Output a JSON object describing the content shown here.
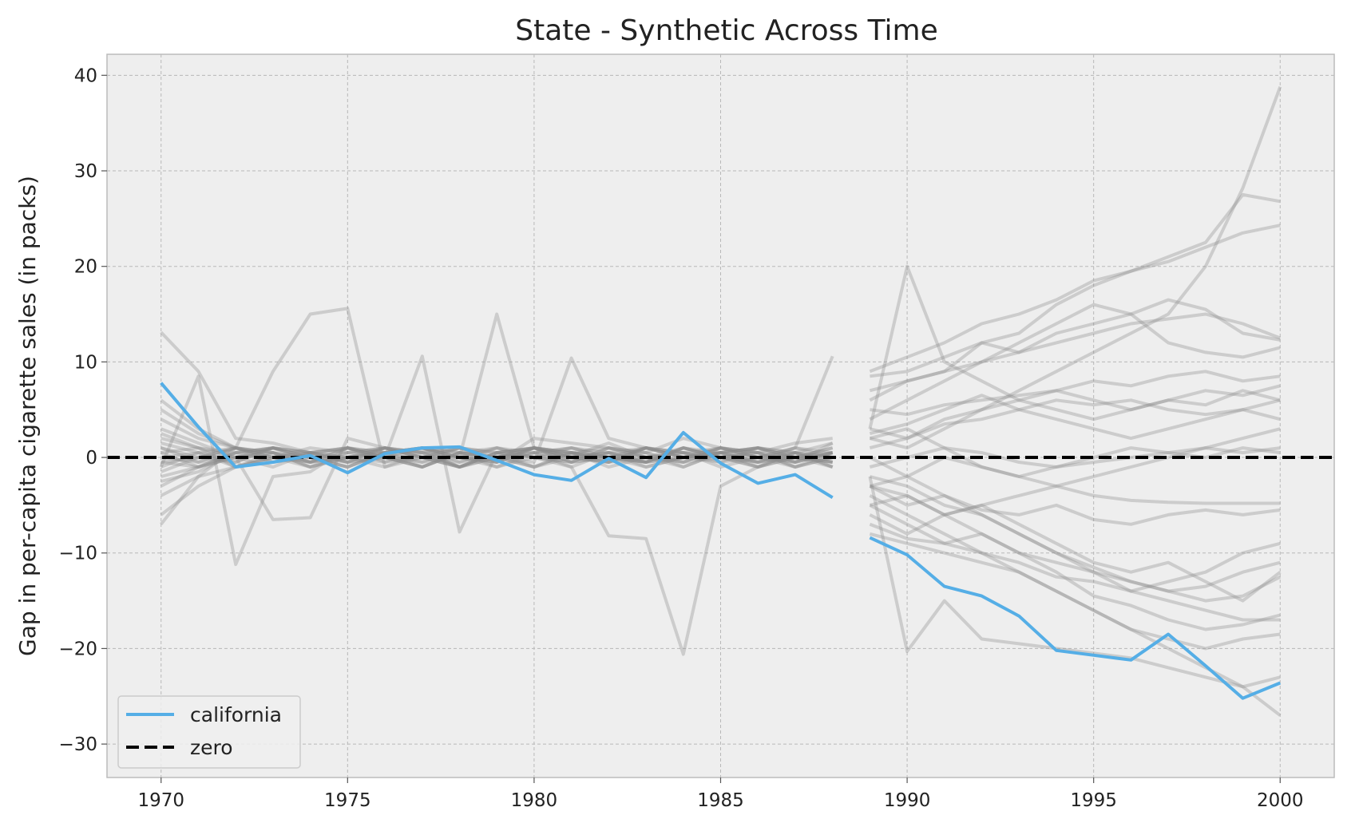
{
  "chart_data": {
    "type": "line",
    "title": "State - Synthetic Across Time",
    "xlabel": "",
    "ylabel": "Gap in per-capita cigarette sales (in packs)",
    "xlim": [
      1968.55,
      2001.45
    ],
    "ylim": [
      -33.5,
      42.2
    ],
    "x_ticks": [
      "1970",
      "1975",
      "1980",
      "1985",
      "1990",
      "1995",
      "2000"
    ],
    "y_ticks": [
      "40",
      "30",
      "20",
      "10",
      "0",
      "−10",
      "−20",
      "−30"
    ],
    "grid": true,
    "legend_position": "lower-left",
    "colors": {
      "california": "#55aee6",
      "placebo": "#8c8c8c",
      "zero": "#000000",
      "plot_bg": "#eeeeee",
      "grid": "#b8b8b8"
    },
    "legend": [
      {
        "label": "california",
        "style": "solid"
      },
      {
        "label": "zero",
        "style": "dashed"
      }
    ],
    "series": [
      {
        "name": "california",
        "pre_x": [
          1970,
          1971,
          1972,
          1973,
          1974,
          1975,
          1976,
          1977,
          1978,
          1979,
          1980,
          1981,
          1982,
          1983,
          1984,
          1985,
          1986,
          1987,
          1988
        ],
        "pre_y": [
          7.8,
          3.2,
          -1.0,
          -0.5,
          0.2,
          -1.6,
          0.4,
          1.0,
          1.1,
          -0.3,
          -1.8,
          -2.4,
          -0.1,
          -2.1,
          2.6,
          -0.6,
          -2.7,
          -1.8,
          -4.2
        ],
        "post_x": [
          1989,
          1990,
          1991,
          1992,
          1993,
          1994,
          1995,
          1996,
          1997,
          1998,
          1999,
          2000
        ],
        "post_y": [
          -8.4,
          -10.2,
          -13.5,
          -14.5,
          -16.6,
          -20.2,
          -20.7,
          -21.2,
          -18.5,
          -21.8,
          -25.2,
          -23.6
        ]
      },
      {
        "name": "zero",
        "x": [
          1968.55,
          2001.45
        ],
        "y": [
          0,
          0
        ]
      }
    ],
    "placebo_series": [
      {
        "pre": [
          13.1,
          9.0,
          2.0,
          1.5,
          0.5,
          0.0,
          -0.5,
          0.8,
          -1.0,
          0.5,
          1.0,
          0.2,
          1.5,
          0.0,
          -1.0,
          0.5,
          1.0,
          -0.5,
          1.5
        ],
        "post": [
          5.0,
          4.5,
          5.5,
          6.0,
          6.5,
          7.0,
          8.0,
          7.5,
          8.5,
          9.0,
          8.0,
          8.5
        ]
      },
      {
        "pre": [
          -7.0,
          -2.0,
          1.0,
          9.0,
          15.0,
          15.6,
          -1.0,
          0.5,
          1.0,
          -0.5,
          2.0,
          1.5,
          1.0,
          0.5,
          2.0,
          1.0,
          0.5,
          1.5,
          2.0
        ],
        "post": [
          9.0,
          10.5,
          12.0,
          14.0,
          15.0,
          16.5,
          18.5,
          19.5,
          20.5,
          22.0,
          23.5,
          24.3
        ]
      },
      {
        "pre": [
          -1.0,
          8.5,
          -11.2,
          -2.0,
          -1.5,
          1.0,
          0.5,
          -1.0,
          0.5,
          1.0,
          0.0,
          -0.5,
          1.0,
          0.5,
          -0.5,
          1.0,
          0.0,
          -1.0,
          0.5
        ],
        "post": [
          -5.0,
          -4.0,
          -6.0,
          -8.0,
          -10.0,
          -12.0,
          -14.5,
          -15.5,
          -17.0,
          -18.0,
          -17.5,
          -16.5
        ]
      },
      {
        "pre": [
          1.0,
          -0.5,
          0.0,
          -6.5,
          -6.3,
          2.0,
          1.0,
          0.0,
          -1.0,
          0.5,
          1.0,
          0.0,
          -0.5,
          1.0,
          0.5,
          0.0,
          -1.0,
          0.5,
          1.5
        ],
        "post": [
          -2.0,
          -3.0,
          -5.0,
          -6.0,
          -8.0,
          -10.0,
          -11.5,
          -13.0,
          -14.0,
          -15.0,
          -14.5,
          -12.5
        ]
      },
      {
        "pre": [
          0.5,
          1.0,
          -1.0,
          0.5,
          -0.5,
          1.0,
          0.0,
          10.6,
          -7.8,
          0.5,
          1.0,
          0.5,
          0.0,
          -0.5,
          1.0,
          0.0,
          0.5,
          -0.5,
          0.5
        ],
        "post": [
          3.0,
          2.0,
          4.0,
          5.0,
          6.0,
          5.0,
          4.0,
          5.0,
          6.0,
          7.0,
          6.5,
          7.5
        ]
      },
      {
        "pre": [
          -2.0,
          -1.0,
          0.5,
          1.0,
          0.0,
          -1.0,
          0.5,
          1.0,
          0.0,
          15.0,
          1.0,
          0.5,
          -1.0,
          0.0,
          0.5,
          1.0,
          0.0,
          -0.5,
          0.5
        ],
        "post": [
          2.0,
          3.0,
          1.0,
          0.5,
          -0.5,
          -1.0,
          -0.5,
          0.0,
          0.5,
          1.0,
          0.5,
          1.0
        ]
      },
      {
        "pre": [
          0.0,
          0.5,
          -1.0,
          0.0,
          1.0,
          0.5,
          0.0,
          -1.0,
          0.5,
          0.0,
          -0.5,
          10.4,
          2.0,
          1.0,
          0.0,
          0.5,
          -1.0,
          0.0,
          0.5
        ],
        "post": [
          -3.0,
          -5.0,
          -4.0,
          -5.5,
          -6.0,
          -5.0,
          -6.5,
          -7.0,
          -6.0,
          -5.5,
          -6.0,
          -5.5
        ]
      },
      {
        "pre": [
          -0.5,
          -1.0,
          0.5,
          1.0,
          -0.5,
          0.0,
          1.0,
          0.5,
          -1.0,
          0.0,
          0.5,
          -1.0,
          -8.2,
          -8.5,
          -20.6,
          -3.0,
          -1.0,
          0.0,
          0.5
        ],
        "post": [
          -2.0,
          -20.3,
          -15.0,
          -19.0,
          -19.5,
          -20.0,
          -20.5,
          -21.0,
          -22.0,
          -23.0,
          -24.0,
          -27.0
        ]
      },
      {
        "pre": [
          1.5,
          0.5,
          -0.5,
          1.0,
          0.0,
          -1.0,
          0.5,
          1.0,
          0.0,
          -0.5,
          1.0,
          0.5,
          0.0,
          1.0,
          0.5,
          -0.5,
          0.0,
          1.0,
          10.6
        ],
        "post": [
          8.5,
          9.0,
          10.5,
          12.0,
          11.0,
          12.0,
          13.0,
          14.0,
          14.5,
          15.0,
          14.0,
          12.5
        ]
      },
      {
        "pre": [
          -1.5,
          0.0,
          1.0,
          -0.5,
          0.5,
          1.0,
          -0.5,
          0.0,
          1.0,
          0.5,
          -1.0,
          0.0,
          0.5,
          -0.5,
          1.0,
          0.0,
          -0.5,
          0.5,
          -1.0
        ],
        "post": [
          3.0,
          20.0,
          10.0,
          8.0,
          6.0,
          7.0,
          6.0,
          5.0,
          6.0,
          5.5,
          7.0,
          6.0
        ]
      },
      {
        "pre": [
          0.0,
          -0.5,
          1.0,
          0.5,
          -1.0,
          0.0,
          0.5,
          1.0,
          -0.5,
          0.0,
          1.0,
          -0.5,
          0.0,
          0.5,
          -1.0,
          0.5,
          1.0,
          0.0,
          -0.5
        ],
        "post": [
          -5.0,
          -7.0,
          -9.0,
          -8.0,
          -10.0,
          -11.0,
          -12.0,
          -13.0,
          -14.0,
          -13.5,
          -12.0,
          -11.0
        ]
      },
      {
        "pre": [
          2.0,
          1.0,
          0.5,
          -0.5,
          0.0,
          1.0,
          0.5,
          -0.5,
          0.0,
          1.0,
          0.5,
          0.0,
          -0.5,
          1.0,
          0.0,
          0.5,
          -0.5,
          0.0,
          1.0
        ],
        "post": [
          1.0,
          2.0,
          3.5,
          4.0,
          5.0,
          6.0,
          5.5,
          6.0,
          5.0,
          4.5,
          5.0,
          4.0
        ]
      },
      {
        "pre": [
          -3.0,
          -1.0,
          0.0,
          1.0,
          0.5,
          -0.5,
          1.0,
          0.0,
          -1.0,
          0.5,
          1.0,
          0.0,
          0.5,
          -0.5,
          0.0,
          1.0,
          0.5,
          -1.0,
          0.0
        ],
        "post": [
          -6.0,
          -8.0,
          -6.0,
          -5.0,
          -4.0,
          -3.0,
          -2.0,
          -1.0,
          0.0,
          1.0,
          2.0,
          3.0
        ]
      },
      {
        "pre": [
          4.0,
          2.0,
          1.0,
          0.0,
          -1.0,
          0.5,
          1.0,
          0.0,
          -0.5,
          1.0,
          0.0,
          -1.0,
          0.5,
          1.0,
          0.0,
          -0.5,
          1.0,
          0.5,
          -1.0
        ],
        "post": [
          6.0,
          8.0,
          9.0,
          12.0,
          13.0,
          16.0,
          18.0,
          19.5,
          21.0,
          22.5,
          27.5,
          26.8
        ]
      },
      {
        "pre": [
          -4.0,
          -2.0,
          -1.0,
          0.0,
          0.5,
          -0.5,
          0.0,
          1.0,
          0.5,
          -1.0,
          0.0,
          0.5,
          -0.5,
          0.0,
          1.0,
          0.0,
          -1.0,
          0.5,
          0.0
        ],
        "post": [
          -8.0,
          -9.0,
          -10.0,
          -11.0,
          -12.0,
          -14.0,
          -16.0,
          -18.0,
          -19.0,
          -20.0,
          -19.0,
          -18.5
        ]
      },
      {
        "pre": [
          6.0,
          3.0,
          1.0,
          0.5,
          0.0,
          -1.0,
          0.5,
          1.0,
          0.0,
          -0.5,
          1.0,
          0.0,
          0.5,
          -1.0,
          0.0,
          0.5,
          1.0,
          0.0,
          -0.5
        ],
        "post": [
          2.0,
          1.0,
          3.0,
          5.0,
          7.0,
          9.0,
          11.0,
          13.0,
          15.0,
          20.0,
          28.2,
          38.8
        ]
      },
      {
        "pre": [
          -6.0,
          -3.0,
          -1.0,
          0.0,
          0.5,
          1.0,
          0.0,
          -0.5,
          1.0,
          0.0,
          -1.0,
          0.5,
          0.0,
          -0.5,
          1.0,
          0.0,
          0.5,
          -1.0,
          0.0
        ],
        "post": [
          0.0,
          -2.0,
          -4.0,
          -6.0,
          -8.0,
          -10.0,
          -12.0,
          -14.0,
          -13.0,
          -12.0,
          -10.0,
          -9.0
        ]
      },
      {
        "pre": [
          3.0,
          1.5,
          0.0,
          -1.0,
          0.5,
          1.0,
          0.0,
          -1.0,
          0.5,
          0.0,
          1.0,
          -0.5,
          0.0,
          1.0,
          0.5,
          0.0,
          -0.5,
          1.0,
          0.0
        ],
        "post": [
          4.0,
          6.0,
          8.0,
          10.0,
          12.0,
          14.0,
          16.0,
          15.0,
          16.5,
          15.5,
          13.0,
          12.3
        ]
      },
      {
        "pre": [
          -2.5,
          -1.5,
          0.5,
          1.0,
          0.0,
          -0.5,
          1.0,
          0.5,
          0.0,
          -1.0,
          0.5,
          1.0,
          0.0,
          -0.5,
          0.0,
          1.0,
          0.5,
          0.0,
          -1.0
        ],
        "post": [
          -3.0,
          -4.0,
          -6.0,
          -5.0,
          -7.0,
          -9.0,
          -11.0,
          -12.0,
          -11.0,
          -13.0,
          -15.0,
          -12.0
        ]
      },
      {
        "pre": [
          1.0,
          0.0,
          -0.5,
          1.0,
          0.5,
          0.0,
          -1.0,
          0.0,
          1.0,
          0.5,
          0.0,
          -0.5,
          1.0,
          0.0,
          0.5,
          -1.0,
          0.0,
          1.0,
          0.5
        ],
        "post": [
          7.0,
          8.0,
          9.0,
          10.0,
          11.0,
          13.0,
          14.0,
          15.0,
          12.0,
          11.0,
          10.5,
          11.5
        ]
      },
      {
        "pre": [
          -1.0,
          0.5,
          1.0,
          0.0,
          -0.5,
          0.0,
          1.0,
          0.5,
          -1.0,
          0.0,
          0.5,
          1.0,
          0.0,
          -0.5,
          1.0,
          0.5,
          0.0,
          -0.5,
          0.5
        ],
        "post": [
          -1.0,
          0.0,
          1.0,
          -1.0,
          -2.0,
          -1.0,
          0.0,
          1.0,
          0.5,
          0.0,
          1.0,
          0.5
        ]
      },
      {
        "pre": [
          2.5,
          1.0,
          0.0,
          0.5,
          -0.5,
          1.0,
          0.0,
          -1.0,
          0.5,
          0.0,
          1.0,
          0.0,
          -0.5,
          1.0,
          0.0,
          0.5,
          -0.5,
          0.0,
          1.0
        ],
        "post": [
          -4.0,
          -6.0,
          -8.0,
          -10.0,
          -12.0,
          -14.0,
          -16.0,
          -18.0,
          -20.0,
          -22.0,
          -24.0,
          -23.0
        ]
      },
      {
        "pre": [
          -0.5,
          0.0,
          1.0,
          0.5,
          -1.0,
          0.0,
          0.5,
          1.0,
          0.0,
          -0.5,
          1.0,
          0.5,
          0.0,
          -1.0,
          0.0,
          0.5,
          1.0,
          0.0,
          -0.5
        ],
        "post": [
          2.5,
          3.5,
          5.0,
          6.5,
          5.0,
          4.0,
          3.0,
          2.0,
          3.0,
          4.0,
          5.0,
          6.0
        ]
      },
      {
        "pre": [
          0.5,
          -1.0,
          0.0,
          1.0,
          0.5,
          -0.5,
          0.0,
          1.0,
          0.5,
          0.0,
          -1.0,
          0.5,
          1.0,
          0.0,
          -0.5,
          0.0,
          1.0,
          0.5,
          0.0
        ],
        "post": [
          -7.0,
          -8.5,
          -9.0,
          -10.0,
          -11.0,
          -12.5,
          -13.0,
          -14.0,
          -15.0,
          -16.0,
          -17.0,
          -17.0
        ]
      },
      {
        "pre": [
          5.0,
          2.5,
          1.0,
          0.0,
          -0.5,
          0.5,
          1.0,
          0.0,
          -1.0,
          0.5,
          0.0,
          1.0,
          0.5,
          0.0,
          -0.5,
          1.0,
          0.0,
          0.5,
          -0.5
        ],
        "post": [
          -3.0,
          -2.0,
          0.0,
          -1.0,
          -2.0,
          -3.0,
          -4.0,
          -4.5,
          -4.7,
          -4.8,
          -4.8,
          -4.8
        ]
      }
    ]
  }
}
